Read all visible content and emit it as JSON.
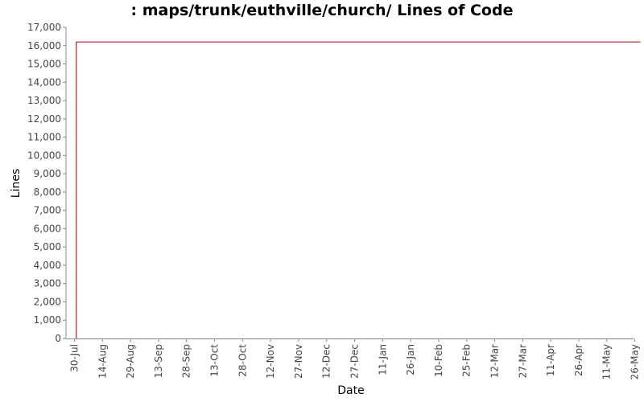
{
  "chart_data": {
    "type": "line",
    "title": ": maps/trunk/euthville/church/ Lines of Code",
    "xlabel": "Date",
    "ylabel": "Lines",
    "ylim": [
      0,
      17000
    ],
    "yticks": [
      0,
      1000,
      2000,
      3000,
      4000,
      5000,
      6000,
      7000,
      8000,
      9000,
      10000,
      11000,
      12000,
      13000,
      14000,
      15000,
      16000,
      17000
    ],
    "ytick_labels": [
      "0",
      "1,000",
      "2,000",
      "3,000",
      "4,000",
      "5,000",
      "6,000",
      "7,000",
      "8,000",
      "9,000",
      "10,000",
      "11,000",
      "12,000",
      "13,000",
      "14,000",
      "15,000",
      "16,000",
      "17,000"
    ],
    "xtick_labels": [
      "30-Jul",
      "14-Aug",
      "29-Aug",
      "13-Sep",
      "28-Sep",
      "13-Oct",
      "28-Oct",
      "12-Nov",
      "27-Nov",
      "12-Dec",
      "27-Dec",
      "11-Jan",
      "26-Jan",
      "10-Feb",
      "25-Feb",
      "12-Mar",
      "27-Mar",
      "11-Apr",
      "26-Apr",
      "11-May",
      "26-May"
    ],
    "grid": false,
    "series": [
      {
        "color": "#aa2222",
        "points": [
          {
            "x": "31-Jul",
            "y": 0
          },
          {
            "x": "31-Jul",
            "y": 16200
          },
          {
            "x": "29-May",
            "y": 16200
          }
        ]
      }
    ]
  }
}
